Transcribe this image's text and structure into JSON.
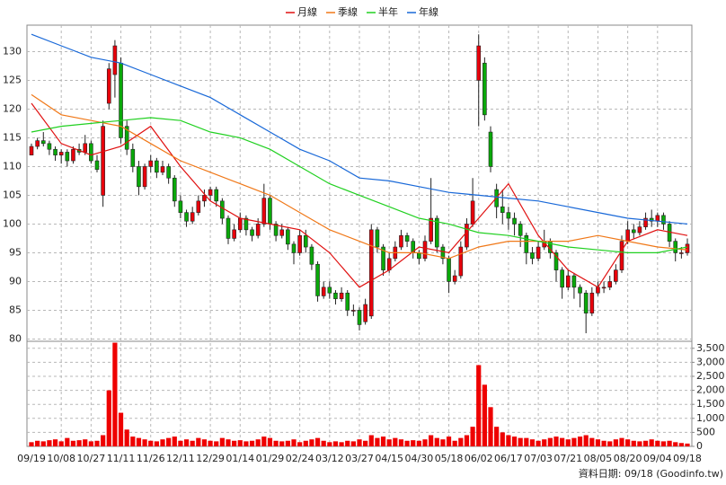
{
  "chart_data": [
    {
      "type": "candlestick",
      "up_color": "#e8000b",
      "down_color": "#0aa80a",
      "grid": true,
      "ylim": [
        79.6,
        134.6
      ],
      "yticks": [
        80,
        85,
        90,
        95,
        100,
        105,
        110,
        115,
        120,
        125,
        130
      ],
      "categories": [
        "09/19",
        null,
        null,
        null,
        null,
        "10/08",
        null,
        null,
        null,
        null,
        "10/27",
        null,
        null,
        null,
        null,
        "11/11",
        null,
        null,
        null,
        null,
        "11/26",
        null,
        null,
        null,
        null,
        "12/11",
        null,
        null,
        null,
        null,
        "12/29",
        null,
        null,
        null,
        null,
        "01/14",
        null,
        null,
        null,
        null,
        "01/29",
        null,
        null,
        null,
        null,
        "02/24",
        null,
        null,
        null,
        null,
        "03/12",
        null,
        null,
        null,
        null,
        "03/27",
        null,
        null,
        null,
        null,
        "04/15",
        null,
        null,
        null,
        null,
        "04/30",
        null,
        null,
        null,
        null,
        "05/18",
        null,
        null,
        null,
        null,
        "06/02",
        null,
        null,
        null,
        null,
        "06/17",
        null,
        null,
        null,
        null,
        "07/03",
        null,
        null,
        null,
        null,
        "07/21",
        null,
        null,
        null,
        null,
        "08/05",
        null,
        null,
        null,
        null,
        "08/20",
        null,
        null,
        null,
        null,
        "09/04",
        null,
        null,
        null,
        null,
        "09/18"
      ],
      "values": [
        [
          112,
          114,
          112,
          113.5
        ],
        [
          113.5,
          115,
          113,
          114.5
        ],
        [
          114.5,
          116,
          113.5,
          114
        ],
        [
          114,
          114.5,
          112,
          113
        ],
        [
          113,
          113.5,
          111,
          112
        ],
        [
          112,
          113,
          110.5,
          112.5
        ],
        [
          112.5,
          113,
          110,
          111
        ],
        [
          111,
          113.5,
          110.5,
          113
        ],
        [
          113,
          114,
          112,
          112.5
        ],
        [
          112.5,
          115.5,
          112,
          114
        ],
        [
          114,
          114.5,
          110.5,
          111
        ],
        [
          111,
          112,
          109,
          109.5
        ],
        [
          105,
          118,
          103,
          117
        ],
        [
          121,
          128,
          120,
          127
        ],
        [
          126,
          132,
          122,
          131
        ],
        [
          128,
          129,
          114,
          115
        ],
        [
          117,
          118,
          112,
          113
        ],
        [
          113,
          114,
          109,
          110
        ],
        [
          110,
          111,
          105,
          106.5
        ],
        [
          106.5,
          110.5,
          106,
          110
        ],
        [
          110,
          112,
          109,
          111
        ],
        [
          111,
          111.5,
          108,
          109
        ],
        [
          109,
          111,
          108.5,
          110
        ],
        [
          110,
          110.5,
          107,
          108
        ],
        [
          108,
          108.5,
          103,
          104
        ],
        [
          104,
          105,
          101,
          102
        ],
        [
          102,
          102.5,
          99.5,
          100.5
        ],
        [
          100.5,
          103,
          100,
          102
        ],
        [
          102,
          105,
          101.5,
          104
        ],
        [
          104,
          106,
          103,
          105
        ],
        [
          105,
          106.5,
          104,
          106
        ],
        [
          106,
          106.5,
          103,
          104
        ],
        [
          104,
          104.5,
          100,
          101
        ],
        [
          101,
          101.5,
          96.5,
          97.5
        ],
        [
          97.5,
          100,
          97,
          99
        ],
        [
          99,
          102,
          98.5,
          101
        ],
        [
          101,
          101.5,
          98,
          99
        ],
        [
          99,
          99.5,
          97,
          98
        ],
        [
          98,
          101,
          97.5,
          100
        ],
        [
          100,
          107,
          99.5,
          104.5
        ],
        [
          104.5,
          105,
          99,
          100
        ],
        [
          100,
          100.5,
          97,
          98
        ],
        [
          98,
          100,
          97.5,
          99
        ],
        [
          99,
          99.5,
          95.5,
          96.5
        ],
        [
          96.5,
          97,
          93,
          95
        ],
        [
          95,
          99,
          94.5,
          98
        ],
        [
          98,
          99,
          95,
          96
        ],
        [
          96,
          96.5,
          92,
          93
        ],
        [
          93,
          93.5,
          86.5,
          87.5
        ],
        [
          87.5,
          90,
          87,
          89
        ],
        [
          89,
          90,
          87,
          88
        ],
        [
          88,
          88.5,
          86,
          87
        ],
        [
          87,
          89,
          86.5,
          88
        ],
        [
          88,
          88.5,
          84,
          85
        ],
        [
          85,
          86,
          84,
          85
        ],
        [
          85,
          85.5,
          81.5,
          82.5
        ],
        [
          83,
          87,
          82.5,
          86
        ],
        [
          84,
          100,
          83.5,
          99
        ],
        [
          99,
          99.5,
          95,
          96
        ],
        [
          96,
          96.5,
          91,
          92
        ],
        [
          92,
          95,
          91.5,
          94
        ],
        [
          94,
          97,
          93.5,
          96
        ],
        [
          96,
          99,
          95.5,
          98
        ],
        [
          98,
          98.5,
          96,
          97
        ],
        [
          97,
          97.5,
          94,
          95
        ],
        [
          95,
          95.5,
          93,
          94
        ],
        [
          94,
          98,
          93.5,
          97
        ],
        [
          97,
          108,
          96.5,
          101
        ],
        [
          101,
          101.5,
          95,
          96
        ],
        [
          96,
          96.5,
          93,
          94
        ],
        [
          94,
          94.5,
          88,
          90
        ],
        [
          90,
          92,
          89.5,
          91
        ],
        [
          91,
          97,
          90.5,
          96
        ],
        [
          96,
          101,
          95.5,
          100
        ],
        [
          100,
          108,
          99.5,
          104
        ],
        [
          125,
          133,
          117,
          131
        ],
        [
          128,
          129,
          118,
          119
        ],
        [
          116,
          117,
          109,
          110
        ],
        [
          106,
          107,
          101,
          103
        ],
        [
          103,
          106,
          100,
          102
        ],
        [
          102,
          103,
          99,
          101
        ],
        [
          101,
          102,
          98,
          100
        ],
        [
          100,
          100.5,
          96,
          98
        ],
        [
          98,
          98.5,
          93,
          95
        ],
        [
          95,
          96,
          93,
          94
        ],
        [
          94,
          97,
          93.5,
          96
        ],
        [
          96,
          99,
          95.5,
          97
        ],
        [
          97,
          97.5,
          94,
          95
        ],
        [
          95,
          95.5,
          90,
          92
        ],
        [
          92,
          92.5,
          87,
          89
        ],
        [
          89,
          92,
          88.5,
          91
        ],
        [
          91,
          91.5,
          87,
          89
        ],
        [
          89,
          89.5,
          85.5,
          88
        ],
        [
          88,
          88.5,
          81,
          84.5
        ],
        [
          84.5,
          89,
          84,
          88
        ],
        [
          88,
          90,
          87.5,
          89
        ],
        [
          89,
          90,
          88,
          89
        ],
        [
          89,
          91,
          88.5,
          90
        ],
        [
          90,
          93,
          89.5,
          92
        ],
        [
          92,
          98,
          91.5,
          97
        ],
        [
          97,
          100.5,
          96.5,
          99
        ],
        [
          99,
          100,
          97.5,
          98.5
        ],
        [
          98.5,
          100.5,
          98,
          99.5
        ],
        [
          99.5,
          102,
          99,
          101
        ],
        [
          101,
          102.5,
          99.5,
          100.5
        ],
        [
          100.5,
          102,
          99.5,
          101.5
        ],
        [
          101.5,
          102,
          99,
          100
        ],
        [
          100,
          100.5,
          96,
          97
        ],
        [
          97,
          97.5,
          93.5,
          95
        ],
        [
          95,
          96,
          94,
          95
        ],
        [
          95,
          97.5,
          94.5,
          96.5
        ]
      ],
      "series": [
        {
          "name": "月線",
          "color": "#e01010",
          "x": [
            0,
            5,
            10,
            15,
            20,
            25,
            30,
            35,
            40,
            45,
            50,
            55,
            60,
            65,
            70,
            75,
            80,
            85,
            90,
            95,
            100,
            105,
            110
          ],
          "values": [
            121,
            114,
            112,
            113.5,
            117,
            110,
            104,
            101,
            100,
            99,
            95,
            89,
            92,
            96,
            95,
            101,
            107,
            98,
            92,
            89,
            97,
            99,
            98
          ]
        },
        {
          "name": "季線",
          "color": "#f07818",
          "x": [
            0,
            5,
            10,
            15,
            20,
            25,
            30,
            35,
            40,
            45,
            50,
            55,
            60,
            65,
            70,
            75,
            80,
            85,
            90,
            95,
            100,
            105,
            110
          ],
          "values": [
            122.5,
            119,
            118,
            117,
            114,
            111,
            109,
            107,
            105,
            102,
            99,
            97,
            95,
            95,
            94,
            96,
            97,
            97,
            97,
            98,
            97,
            96,
            95.5
          ]
        },
        {
          "name": "半年",
          "color": "#20d020",
          "x": [
            0,
            5,
            10,
            15,
            20,
            25,
            30,
            35,
            40,
            45,
            50,
            55,
            60,
            65,
            70,
            75,
            80,
            85,
            90,
            95,
            100,
            105,
            110
          ],
          "values": [
            116,
            117,
            117.5,
            118,
            118.5,
            118,
            116,
            115,
            113,
            110,
            107,
            105,
            103,
            101,
            100,
            98.5,
            98,
            97,
            96,
            95.5,
            95,
            95,
            96
          ]
        },
        {
          "name": "年線",
          "color": "#1868d8",
          "x": [
            0,
            5,
            10,
            15,
            20,
            25,
            30,
            35,
            40,
            45,
            50,
            55,
            60,
            65,
            70,
            75,
            80,
            85,
            90,
            95,
            100,
            105,
            110
          ],
          "values": [
            133,
            131,
            129,
            128,
            126,
            124,
            122,
            119,
            116,
            113,
            111,
            108,
            107.5,
            106.5,
            105.5,
            105,
            104.5,
            104,
            103,
            102,
            101,
            100.5,
            100
          ]
        }
      ]
    },
    {
      "type": "bar",
      "color": "#ee0000",
      "ylim": [
        0,
        3750
      ],
      "yticks": [
        0,
        500,
        {
          "value": 1000,
          "label": "1,000"
        },
        {
          "value": 1500,
          "label": "1,500"
        },
        {
          "value": 2000,
          "label": "2,000"
        },
        {
          "value": 2500,
          "label": "2,500"
        },
        {
          "value": 3000,
          "label": "3,000"
        },
        {
          "value": 3500,
          "label": "3,500"
        }
      ],
      "values": [
        150,
        200,
        180,
        220,
        250,
        180,
        300,
        200,
        220,
        250,
        180,
        200,
        400,
        2000,
        3700,
        1200,
        600,
        350,
        300,
        250,
        200,
        180,
        250,
        300,
        350,
        200,
        250,
        200,
        300,
        250,
        200,
        180,
        300,
        250,
        200,
        220,
        180,
        200,
        250,
        350,
        300,
        200,
        180,
        200,
        250,
        150,
        200,
        250,
        300,
        200,
        150,
        180,
        150,
        200,
        180,
        250,
        200,
        400,
        300,
        350,
        250,
        300,
        250,
        200,
        220,
        200,
        250,
        400,
        300,
        250,
        350,
        200,
        300,
        400,
        700,
        2900,
        2200,
        1400,
        700,
        500,
        400,
        350,
        300,
        300,
        250,
        200,
        250,
        300,
        350,
        300,
        250,
        300,
        350,
        400,
        300,
        250,
        200,
        180,
        250,
        300,
        250,
        200,
        180,
        200,
        250,
        200,
        180,
        200,
        150,
        120,
        100
      ]
    }
  ],
  "source_note": "資料日期: 09/18 (Goodinfo.tw)"
}
